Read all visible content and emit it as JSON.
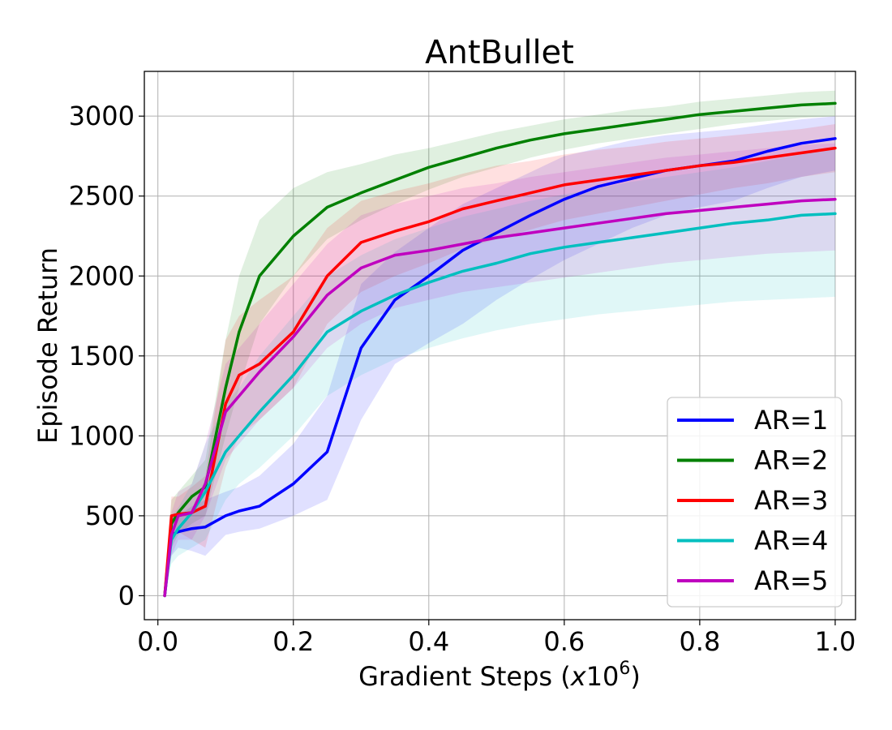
{
  "chart_data": {
    "type": "line",
    "title": "AntBullet",
    "xlabel_main": "Gradient Steps (",
    "xlabel_var": "x",
    "xlabel_base": "10",
    "xlabel_exp": "6",
    "xlabel_close": ")",
    "ylabel": "Episode Return",
    "xlim": [
      -0.02,
      1.03
    ],
    "ylim": [
      -150,
      3280
    ],
    "x_ticks": [
      0.0,
      0.2,
      0.4,
      0.6,
      0.8,
      1.0
    ],
    "x_tick_labels": [
      "0.0",
      "0.2",
      "0.4",
      "0.6",
      "0.8",
      "1.0"
    ],
    "y_ticks": [
      0,
      500,
      1000,
      1500,
      2000,
      2500,
      3000
    ],
    "y_tick_labels": [
      "0",
      "500",
      "1000",
      "1500",
      "2000",
      "2500",
      "3000"
    ],
    "grid": true,
    "legend_position": "bottom-right",
    "x": [
      0.01,
      0.02,
      0.03,
      0.05,
      0.07,
      0.1,
      0.12,
      0.15,
      0.2,
      0.25,
      0.3,
      0.35,
      0.4,
      0.45,
      0.5,
      0.55,
      0.6,
      0.65,
      0.7,
      0.75,
      0.8,
      0.85,
      0.9,
      0.95,
      1.0
    ],
    "series": [
      {
        "name": "AR=1",
        "color": "#0000ff",
        "values": [
          0,
          380,
          400,
          420,
          430,
          500,
          530,
          560,
          700,
          900,
          1550,
          1850,
          2000,
          2160,
          2270,
          2380,
          2480,
          2560,
          2610,
          2660,
          2690,
          2720,
          2780,
          2830,
          2860
        ],
        "lower": [
          0,
          250,
          300,
          280,
          250,
          380,
          400,
          420,
          500,
          600,
          1100,
          1450,
          1580,
          1700,
          1850,
          1980,
          2100,
          2200,
          2300,
          2380,
          2430,
          2470,
          2550,
          2620,
          2660
        ],
        "upper": [
          0,
          500,
          500,
          560,
          600,
          650,
          680,
          750,
          950,
          1250,
          1950,
          2150,
          2300,
          2450,
          2550,
          2650,
          2750,
          2800,
          2850,
          2880,
          2900,
          2920,
          2950,
          2980,
          3000
        ]
      },
      {
        "name": "AR=2",
        "color": "#008000",
        "values": [
          0,
          450,
          520,
          620,
          680,
          1300,
          1650,
          2000,
          2250,
          2430,
          2520,
          2600,
          2680,
          2740,
          2800,
          2850,
          2890,
          2920,
          2950,
          2980,
          3010,
          3030,
          3050,
          3070,
          3080
        ],
        "lower": [
          0,
          300,
          380,
          450,
          500,
          1000,
          1300,
          1700,
          2000,
          2230,
          2350,
          2450,
          2540,
          2620,
          2680,
          2740,
          2790,
          2830,
          2860,
          2890,
          2920,
          2950,
          2970,
          2990,
          3000
        ],
        "upper": [
          0,
          600,
          650,
          750,
          850,
          1600,
          2000,
          2350,
          2550,
          2650,
          2700,
          2760,
          2800,
          2850,
          2900,
          2940,
          2980,
          3010,
          3040,
          3060,
          3090,
          3110,
          3130,
          3150,
          3160
        ]
      },
      {
        "name": "AR=3",
        "color": "#ff0000",
        "values": [
          0,
          500,
          510,
          520,
          560,
          1200,
          1380,
          1450,
          1650,
          2000,
          2210,
          2280,
          2340,
          2420,
          2470,
          2520,
          2570,
          2600,
          2630,
          2660,
          2690,
          2710,
          2740,
          2770,
          2800
        ],
        "lower": [
          0,
          400,
          400,
          350,
          300,
          800,
          1000,
          1100,
          1300,
          1700,
          1900,
          2000,
          2080,
          2170,
          2230,
          2290,
          2350,
          2390,
          2430,
          2470,
          2510,
          2550,
          2580,
          2620,
          2650
        ],
        "upper": [
          0,
          620,
          620,
          680,
          750,
          1600,
          1750,
          1850,
          2000,
          2300,
          2470,
          2530,
          2580,
          2640,
          2690,
          2720,
          2760,
          2790,
          2810,
          2840,
          2860,
          2880,
          2900,
          2920,
          2950
        ]
      },
      {
        "name": "AR=4",
        "color": "#00bfbf",
        "values": [
          0,
          350,
          420,
          520,
          650,
          900,
          1000,
          1150,
          1380,
          1650,
          1780,
          1880,
          1960,
          2030,
          2080,
          2140,
          2180,
          2210,
          2240,
          2270,
          2300,
          2330,
          2350,
          2380,
          2390
        ],
        "lower": [
          0,
          200,
          250,
          300,
          350,
          600,
          700,
          800,
          1000,
          1250,
          1380,
          1480,
          1550,
          1610,
          1660,
          1700,
          1730,
          1760,
          1780,
          1800,
          1820,
          1840,
          1850,
          1860,
          1870
        ],
        "upper": [
          0,
          500,
          550,
          700,
          950,
          1200,
          1300,
          1500,
          1750,
          2000,
          2130,
          2230,
          2300,
          2370,
          2420,
          2470,
          2510,
          2550,
          2590,
          2620,
          2650,
          2680,
          2720,
          2760,
          2800
        ]
      },
      {
        "name": "AR=5",
        "color": "#bf00bf",
        "values": [
          0,
          380,
          500,
          520,
          700,
          1150,
          1250,
          1400,
          1620,
          1880,
          2050,
          2130,
          2160,
          2200,
          2240,
          2270,
          2300,
          2330,
          2360,
          2390,
          2410,
          2430,
          2450,
          2470,
          2480
        ],
        "lower": [
          0,
          250,
          350,
          350,
          500,
          850,
          950,
          1100,
          1300,
          1550,
          1700,
          1800,
          1850,
          1900,
          1930,
          1960,
          1990,
          2020,
          2050,
          2080,
          2100,
          2120,
          2140,
          2150,
          2160
        ],
        "upper": [
          0,
          520,
          650,
          700,
          950,
          1450,
          1550,
          1700,
          1950,
          2200,
          2380,
          2450,
          2500,
          2550,
          2580,
          2620,
          2650,
          2680,
          2710,
          2740,
          2760,
          2780,
          2800,
          2820,
          2830
        ]
      }
    ]
  }
}
